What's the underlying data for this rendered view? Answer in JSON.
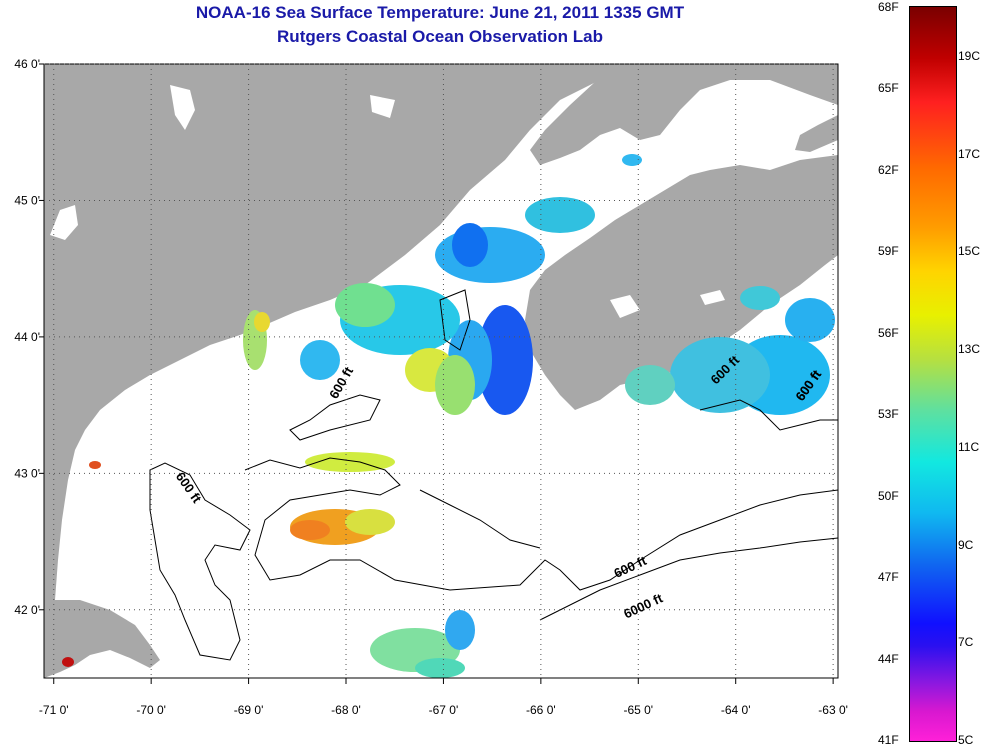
{
  "title": "NOAA-16 Sea Surface Temperature:  June 21, 2011 1335 GMT",
  "subtitle": "Rutgers Coastal Ocean Observation Lab",
  "map": {
    "lon_range": [
      -71.1,
      -62.95
    ],
    "lat_range": [
      41.5,
      46.0
    ],
    "lon_ticks": [
      "-71 0'",
      "-70 0'",
      "-69 0'",
      "-68 0'",
      "-67 0'",
      "-66 0'",
      "-65 0'",
      "-64 0'",
      "-63 0'"
    ],
    "lat_ticks": [
      "46 0'",
      "45 0'",
      "44 0'",
      "43 0'",
      "42 0'"
    ],
    "contour_labels": [
      "600 ft",
      "600 ft",
      "600 ft",
      "600 ft",
      "6000 ft"
    ],
    "colors": {
      "land": "#a8a8a8",
      "ocean_nodata": "#ffffff",
      "title": "#1a1aa8"
    }
  },
  "colorbar": {
    "fahrenheit": [
      "68F",
      "65F",
      "62F",
      "59F",
      "56F",
      "53F",
      "50F",
      "47F",
      "44F",
      "41F"
    ],
    "celsius": [
      "19C",
      "17C",
      "15C",
      "13C",
      "11C",
      "9C",
      "7C",
      "5C"
    ],
    "f_values": [
      68,
      65,
      62,
      59,
      56,
      53,
      50,
      47,
      44,
      41
    ],
    "c_values": [
      19,
      17,
      15,
      13,
      11,
      9,
      7,
      5
    ],
    "range_c": [
      5,
      20
    ]
  }
}
